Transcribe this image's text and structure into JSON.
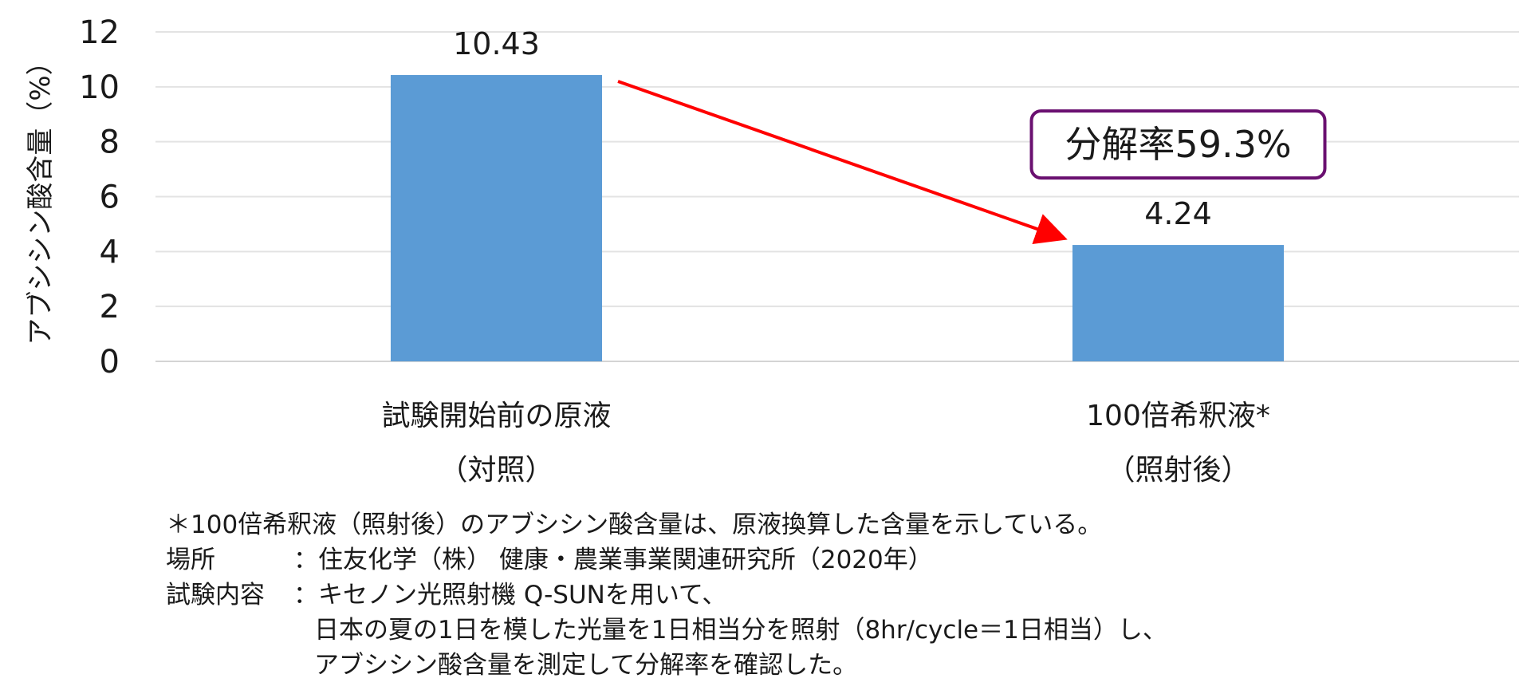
{
  "chart_data": {
    "type": "bar",
    "categories": [
      [
        "試験開始前の原液",
        "（対照）"
      ],
      [
        "100倍希釈液*",
        "（照射後）"
      ]
    ],
    "values": [
      10.43,
      4.24
    ],
    "value_labels": [
      "10.43",
      "4.24"
    ],
    "ylabel": "アブシシン酸含量（%）",
    "ylim": [
      0,
      12
    ],
    "yticks": [
      0,
      2,
      4,
      6,
      8,
      10,
      12
    ],
    "grid": true,
    "legend": "none",
    "bar_color": "#5b9bd5",
    "annotation": {
      "text": "分解率59.3%",
      "arrow_color": "#ff0000",
      "box_border_color": "#6a1070",
      "from_category": 0,
      "to_category": 1
    }
  },
  "notes": {
    "footnote": "＊100倍希釈液（照射後）のアブシシン酸含量は、原液換算した含量を示している。",
    "place_term": "場所",
    "place_value": "：住友化学（株） 健康・農業事業関連研究所（2020年）",
    "test_term": "試験内容",
    "test_line1": "：キセノン光照射機 Q-SUNを用いて、",
    "test_line2": "日本の夏の1日を模した光量を1日相当分を照射（8hr/cycle＝1日相当）し、",
    "test_line3": "アブシシン酸含量を測定して分解率を確認した。"
  }
}
